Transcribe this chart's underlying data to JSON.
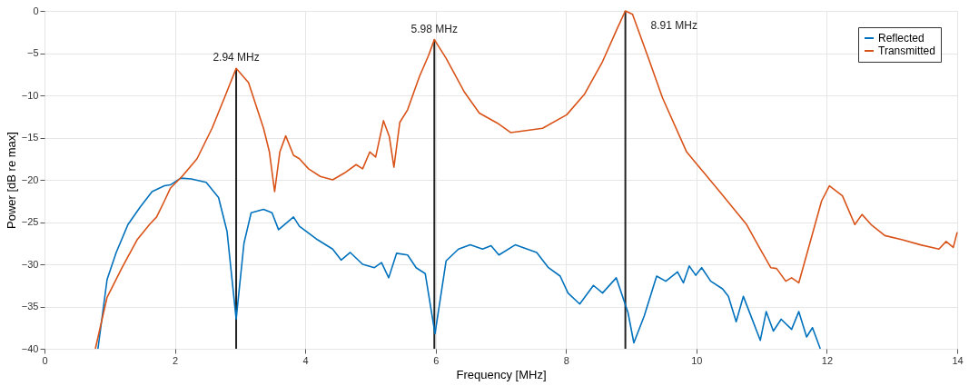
{
  "chart_data": {
    "type": "line",
    "xlabel": "Frequency [MHz]",
    "ylabel": "Power [dB re max]",
    "xlim": [
      0,
      14
    ],
    "xticks": [
      0,
      2,
      4,
      6,
      8,
      10,
      12,
      14
    ],
    "ylim": [
      -40,
      0
    ],
    "yticks": [
      -40,
      -35,
      -30,
      -25,
      -20,
      -15,
      -10,
      -5,
      0
    ],
    "grid": true,
    "legend": "top right",
    "marker": "none",
    "line_style": "solid",
    "series": [
      {
        "name": "Reflected",
        "color": "#0072bd",
        "x": [
          0.82,
          0.96,
          1.1,
          1.28,
          1.47,
          1.65,
          1.84,
          1.93,
          2.09,
          2.25,
          2.48,
          2.67,
          2.8,
          2.94,
          3.06,
          3.17,
          3.36,
          3.49,
          3.59,
          3.82,
          3.91,
          4.19,
          4.42,
          4.55,
          4.69,
          4.88,
          5.06,
          5.17,
          5.28,
          5.4,
          5.57,
          5.7,
          5.84,
          5.99,
          6.16,
          6.35,
          6.53,
          6.72,
          6.85,
          6.97,
          7.22,
          7.55,
          7.73,
          7.91,
          8.03,
          8.21,
          8.42,
          8.56,
          8.77,
          8.95,
          9.04,
          9.2,
          9.39,
          9.53,
          9.71,
          9.8,
          9.89,
          9.99,
          10.08,
          10.22,
          10.4,
          10.49,
          10.61,
          10.72,
          10.86,
          10.98,
          11.07,
          11.18,
          11.3,
          11.46,
          11.57,
          11.69,
          11.78,
          11.9
        ],
        "values": [
          -40,
          -31.8,
          -28.6,
          -25.3,
          -23.2,
          -21.4,
          -20.7,
          -20.6,
          -19.8,
          -19.9,
          -20.3,
          -22.1,
          -26.1,
          -36.5,
          -27.5,
          -23.9,
          -23.5,
          -23.9,
          -25.9,
          -24.4,
          -25.5,
          -27.1,
          -28.2,
          -29.5,
          -28.6,
          -30.0,
          -30.4,
          -29.8,
          -31.6,
          -28.7,
          -28.9,
          -30.4,
          -31.1,
          -38.2,
          -29.6,
          -28.2,
          -27.7,
          -28.2,
          -27.8,
          -28.9,
          -27.7,
          -28.6,
          -30.4,
          -31.4,
          -33.4,
          -34.7,
          -32.5,
          -33.4,
          -31.6,
          -35.7,
          -39.3,
          -36.1,
          -31.4,
          -32.0,
          -30.9,
          -32.2,
          -30.2,
          -31.3,
          -30.4,
          -32.0,
          -32.9,
          -33.8,
          -36.8,
          -33.8,
          -36.6,
          -39.0,
          -35.6,
          -37.9,
          -36.5,
          -37.7,
          -35.6,
          -38.6,
          -37.5,
          -40
        ]
      },
      {
        "name": "Transmitted",
        "color": "#d95319",
        "x": [
          0.78,
          0.96,
          1.19,
          1.42,
          1.61,
          1.72,
          1.84,
          1.93,
          2.11,
          2.34,
          2.57,
          2.76,
          2.94,
          3.13,
          3.36,
          3.45,
          3.53,
          3.61,
          3.7,
          3.82,
          3.91,
          4.05,
          4.23,
          4.42,
          4.6,
          4.78,
          4.88,
          4.99,
          5.08,
          5.2,
          5.29,
          5.36,
          5.45,
          5.57,
          5.75,
          5.89,
          5.98,
          6.16,
          6.44,
          6.67,
          6.95,
          7.15,
          7.36,
          7.64,
          8.01,
          8.28,
          8.56,
          8.79,
          8.91,
          9.02,
          9.25,
          9.48,
          9.85,
          10.12,
          10.4,
          10.77,
          10.95,
          11.14,
          11.23,
          11.37,
          11.46,
          11.57,
          11.74,
          11.92,
          12.04,
          12.24,
          12.43,
          12.54,
          12.68,
          12.89,
          13.16,
          13.44,
          13.72,
          13.83,
          13.94,
          14.0
        ],
        "values": [
          -40,
          -33.9,
          -30.4,
          -27.1,
          -25.3,
          -24.4,
          -22.5,
          -21.0,
          -19.6,
          -17.5,
          -13.9,
          -10.3,
          -6.8,
          -8.5,
          -13.9,
          -16.7,
          -21.4,
          -16.7,
          -14.8,
          -17.1,
          -17.5,
          -18.7,
          -19.6,
          -20.0,
          -19.2,
          -18.2,
          -18.7,
          -16.7,
          -17.3,
          -13.0,
          -14.9,
          -18.5,
          -13.2,
          -11.7,
          -7.8,
          -5.3,
          -3.4,
          -5.6,
          -9.6,
          -12.1,
          -13.3,
          -14.4,
          -14.2,
          -13.9,
          -12.3,
          -9.9,
          -6.0,
          -2.0,
          0,
          -0.4,
          -5.3,
          -10.3,
          -16.7,
          -19.2,
          -21.8,
          -25.3,
          -27.8,
          -30.4,
          -30.5,
          -32.0,
          -31.6,
          -32.2,
          -27.5,
          -22.5,
          -20.7,
          -21.9,
          -25.3,
          -24.1,
          -25.3,
          -26.6,
          -27.1,
          -27.7,
          -28.2,
          -27.3,
          -28.0,
          -26.2
        ]
      }
    ],
    "annotations": [
      {
        "text": "2.94 MHz",
        "x": 2.94,
        "y": -6.8
      },
      {
        "text": "5.98 MHz",
        "x": 5.98,
        "y": -3.4
      },
      {
        "text": "8.91 MHz",
        "x": 8.91,
        "y": 0
      }
    ]
  }
}
